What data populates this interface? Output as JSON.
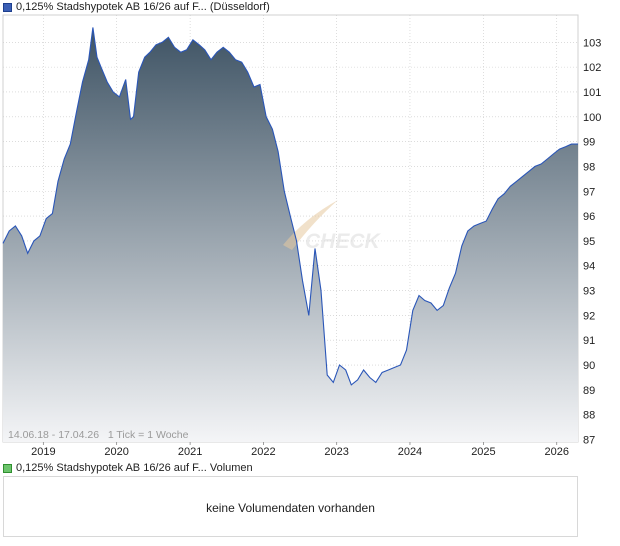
{
  "legend": {
    "price_label": "0,125% Stadshypotek AB 16/26 auf F... (Düsseldorf)",
    "volume_label": "0,125% Stadshypotek AB 16/26 auf F... Volumen"
  },
  "range_note": "14.06.18 - 17.04.26   1 Tick = 1 Woche",
  "watermark": "CHECK",
  "volume": {
    "message": "keine Volumendaten vorhanden"
  },
  "colors": {
    "line": "#2a56b8",
    "fill_top": "#3e5364",
    "fill_bottom": "#f4f5f7",
    "grid": "#c8c8c8",
    "price_swatch": "#3b5fb5",
    "volume_swatch": "#6cc46c"
  },
  "chart_data": {
    "type": "area",
    "x_start": "2018-06-14",
    "x_end": "2026-04-17",
    "ylim": [
      86.9,
      104.1
    ],
    "y_ticks": [
      87,
      88,
      89,
      90,
      91,
      92,
      93,
      94,
      95,
      96,
      97,
      98,
      99,
      100,
      101,
      102,
      103
    ],
    "x_ticks": [
      "2019",
      "2020",
      "2021",
      "2022",
      "2023",
      "2024",
      "2025",
      "2026"
    ],
    "grid": true,
    "series": [
      {
        "x": [
          "2018-06-14",
          "2018-07-15",
          "2018-08-15",
          "2018-09-15",
          "2018-10-15",
          "2018-11-15",
          "2018-12-15",
          "2019-01-15",
          "2019-02-15",
          "2019-03-15",
          "2019-04-15",
          "2019-05-15",
          "2019-06-15",
          "2019-07-15",
          "2019-08-15",
          "2019-09-05",
          "2019-09-25",
          "2019-10-15",
          "2019-11-15",
          "2019-12-15",
          "2020-01-15",
          "2020-02-15",
          "2020-03-10",
          "2020-03-25",
          "2020-04-20",
          "2020-05-20",
          "2020-06-15",
          "2020-07-15",
          "2020-08-15",
          "2020-09-15",
          "2020-10-15",
          "2020-11-15",
          "2020-12-15",
          "2021-01-15",
          "2021-02-15",
          "2021-03-15",
          "2021-04-15",
          "2021-05-15",
          "2021-06-15",
          "2021-07-15",
          "2021-08-15",
          "2021-09-15",
          "2021-10-15",
          "2021-11-15",
          "2021-12-15",
          "2022-01-15",
          "2022-02-15",
          "2022-03-15",
          "2022-04-15",
          "2022-05-15",
          "2022-06-15",
          "2022-07-15",
          "2022-08-15",
          "2022-09-15",
          "2022-10-15",
          "2022-11-15",
          "2022-12-15",
          "2023-01-15",
          "2023-02-15",
          "2023-03-15",
          "2023-04-15",
          "2023-05-15",
          "2023-06-15",
          "2023-07-15",
          "2023-08-15",
          "2023-09-15",
          "2023-10-15",
          "2023-11-15",
          "2023-12-15",
          "2024-01-15",
          "2024-02-15",
          "2024-03-15",
          "2024-04-15",
          "2024-05-15",
          "2024-06-15",
          "2024-07-15",
          "2024-08-15",
          "2024-09-15",
          "2024-10-15",
          "2024-11-15",
          "2024-12-15",
          "2025-01-15",
          "2025-02-15",
          "2025-03-15",
          "2025-04-15",
          "2025-05-15",
          "2025-06-15",
          "2025-07-15",
          "2025-08-15",
          "2025-09-15",
          "2025-10-15",
          "2025-11-15",
          "2025-12-15",
          "2026-01-15",
          "2026-02-15",
          "2026-03-15",
          "2026-04-17"
        ],
        "values": [
          94.9,
          95.4,
          95.6,
          95.2,
          94.5,
          95.0,
          95.2,
          95.9,
          96.1,
          97.4,
          98.3,
          98.9,
          100.2,
          101.4,
          102.3,
          103.6,
          102.4,
          102.0,
          101.4,
          101.0,
          100.8,
          101.5,
          99.9,
          100.0,
          101.8,
          102.4,
          102.6,
          102.9,
          103.0,
          103.2,
          102.8,
          102.6,
          102.7,
          103.1,
          102.9,
          102.7,
          102.3,
          102.6,
          102.8,
          102.6,
          102.3,
          102.2,
          101.8,
          101.2,
          101.3,
          100.0,
          99.5,
          98.6,
          97.0,
          96.0,
          95.0,
          93.4,
          92.0,
          94.7,
          93.0,
          89.6,
          89.3,
          90.0,
          89.8,
          89.2,
          89.4,
          89.8,
          89.5,
          89.3,
          89.7,
          89.8,
          89.9,
          90.0,
          90.6,
          92.2,
          92.8,
          92.6,
          92.5,
          92.2,
          92.4,
          93.1,
          93.7,
          94.8,
          95.4,
          95.6,
          95.7,
          95.8,
          96.3,
          96.7,
          96.9,
          97.2,
          97.4,
          97.6,
          97.8,
          98.0,
          98.1,
          98.3,
          98.5,
          98.7,
          98.8,
          98.9,
          98.9
        ]
      }
    ]
  }
}
